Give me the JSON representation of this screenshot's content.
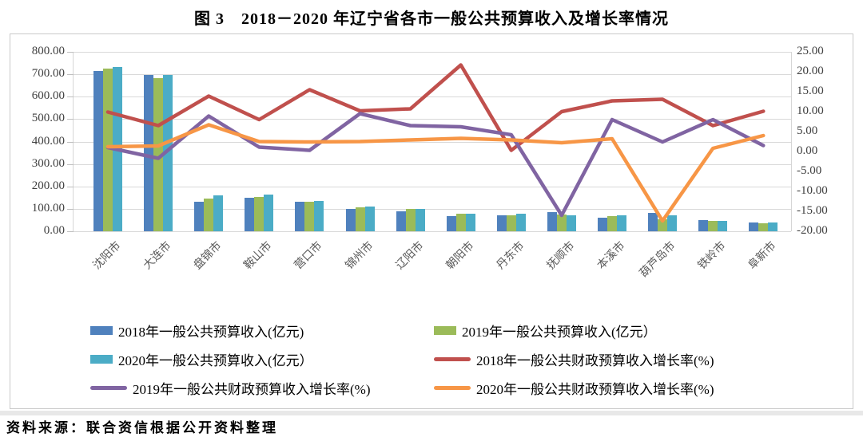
{
  "title": "图 3　2018－2020 年辽宁省各市一般公共预算收入及增长率情况",
  "source": "资料来源：联合资信根据公开资料整理",
  "chart_data": {
    "type": "bar",
    "subtype": "bar-line-combo",
    "categories": [
      "沈阳市",
      "大连市",
      "盘锦市",
      "鞍山市",
      "营口市",
      "锦州市",
      "辽阳市",
      "朝阳市",
      "丹东市",
      "抚顺市",
      "本溪市",
      "葫芦岛市",
      "铁岭市",
      "阜新市"
    ],
    "bar_series": [
      {
        "name": "2018年一般公共预算收入(亿元)",
        "color": "#4F81BD",
        "values": [
          715,
          697,
          133,
          149,
          130,
          99,
          88,
          69,
          72,
          86,
          61,
          82,
          51,
          39
        ]
      },
      {
        "name": "2019年一般公共预算收入(亿元）",
        "color": "#9BBB59",
        "values": [
          725,
          683,
          146,
          152,
          133,
          105,
          98,
          77,
          72,
          75,
          68,
          52,
          45,
          37
        ]
      },
      {
        "name": "2020年一般公共预算收入(亿元）",
        "color": "#4BACC6",
        "values": [
          732,
          696,
          161,
          162,
          136,
          111,
          101,
          80,
          77,
          72,
          70,
          70,
          47,
          39
        ]
      }
    ],
    "line_series": [
      {
        "name": "2018年一般公共财政预算收入增长率(%)",
        "color": "#C0504D",
        "values": [
          9.9,
          6.5,
          13.9,
          8.0,
          15.5,
          10.2,
          10.7,
          21.7,
          0.3,
          10.0,
          12.7,
          13.1,
          6.5,
          10.1
        ]
      },
      {
        "name": "2019年一般公共财政预算收入增长率(%)",
        "color": "#8064A2",
        "values": [
          1.0,
          -1.7,
          8.9,
          1.1,
          0.3,
          9.5,
          6.5,
          6.2,
          4.2,
          -16.0,
          8.0,
          2.4,
          8.0,
          1.5
        ]
      },
      {
        "name": "2020年一般公共财政预算收入增长率(%)",
        "color": "#F79646",
        "values": [
          1.2,
          1.4,
          6.7,
          2.5,
          2.4,
          2.5,
          2.9,
          3.3,
          2.9,
          2.2,
          3.2,
          -17.4,
          0.8,
          4.0
        ]
      }
    ],
    "left_axis": {
      "min": 0,
      "max": 800,
      "step": 100,
      "labels": [
        "800.00",
        "700.00",
        "600.00",
        "500.00",
        "400.00",
        "300.00",
        "200.00",
        "100.00",
        "0.00"
      ]
    },
    "right_axis": {
      "min": -20,
      "max": 25,
      "step": 5,
      "labels": [
        "25.00",
        "20.00",
        "15.00",
        "10.00",
        "5.00",
        "0.00",
        "-5.00",
        "-10.00",
        "-15.00",
        "-20.00"
      ]
    },
    "grid": true,
    "legend_position": "bottom",
    "gridline_color": "#d9d9d9"
  }
}
